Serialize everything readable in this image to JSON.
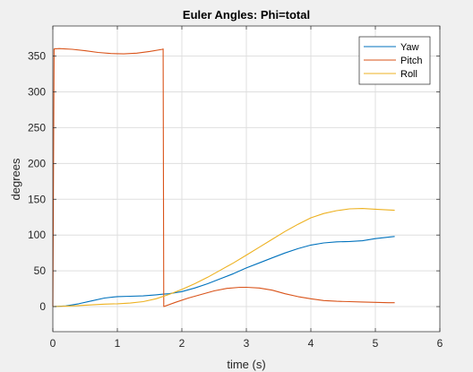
{
  "chart_data": {
    "type": "line",
    "title": "Euler Angles: Phi=total",
    "xlabel": "time (s)",
    "ylabel": "degrees",
    "xlim": [
      0,
      6
    ],
    "ylim": [
      -35,
      392
    ],
    "xticks": [
      0,
      1,
      2,
      3,
      4,
      5,
      6
    ],
    "yticks": [
      0,
      50,
      100,
      150,
      200,
      250,
      300,
      350
    ],
    "grid": true,
    "legend_position": "top-right",
    "series": [
      {
        "name": "Yaw",
        "color": "#0072bd",
        "x": [
          0,
          0.2,
          0.4,
          0.6,
          0.8,
          1.0,
          1.2,
          1.4,
          1.6,
          1.72,
          1.8,
          2.0,
          2.2,
          2.4,
          2.6,
          2.8,
          3.0,
          3.2,
          3.4,
          3.6,
          3.8,
          4.0,
          4.2,
          4.4,
          4.6,
          4.8,
          5.0,
          5.2,
          5.3
        ],
        "y": [
          0,
          1,
          4,
          8,
          12,
          14,
          14.5,
          15,
          16.5,
          17.5,
          18,
          21,
          26,
          32,
          39,
          46,
          54,
          61,
          68,
          75,
          81,
          86,
          89,
          90.5,
          91,
          92,
          95,
          97,
          98
        ]
      },
      {
        "name": "Pitch",
        "color": "#d95319",
        "x": [
          0,
          0.02,
          0.1,
          0.3,
          0.5,
          0.7,
          0.9,
          1.1,
          1.3,
          1.5,
          1.7,
          1.71,
          1.72,
          1.9,
          2.1,
          2.3,
          2.5,
          2.7,
          2.9,
          3.0,
          3.2,
          3.4,
          3.6,
          3.8,
          4.0,
          4.2,
          4.4,
          4.6,
          4.8,
          5.0,
          5.2,
          5.3
        ],
        "y": [
          0,
          360,
          360.5,
          359.5,
          357.5,
          355,
          353.5,
          353,
          354,
          356.5,
          359.5,
          360,
          0,
          6,
          12,
          17,
          22,
          25.5,
          27,
          27,
          26,
          23,
          18,
          14,
          11,
          8.5,
          7.5,
          7,
          6.5,
          6,
          5.5,
          5.5
        ]
      },
      {
        "name": "Roll",
        "color": "#edb120",
        "x": [
          0,
          0.2,
          0.4,
          0.6,
          0.8,
          1.0,
          1.2,
          1.4,
          1.6,
          1.8,
          2.0,
          2.2,
          2.4,
          2.6,
          2.8,
          3.0,
          3.2,
          3.4,
          3.6,
          3.8,
          4.0,
          4.2,
          4.4,
          4.6,
          4.8,
          5.0,
          5.2,
          5.3
        ],
        "y": [
          0,
          0.5,
          1.5,
          2.5,
          3.5,
          4,
          5,
          7,
          11,
          17,
          24,
          32,
          41,
          51,
          61,
          72,
          83,
          94,
          105,
          115,
          124,
          130,
          134,
          136.5,
          137,
          136,
          135,
          134.5
        ]
      }
    ]
  }
}
